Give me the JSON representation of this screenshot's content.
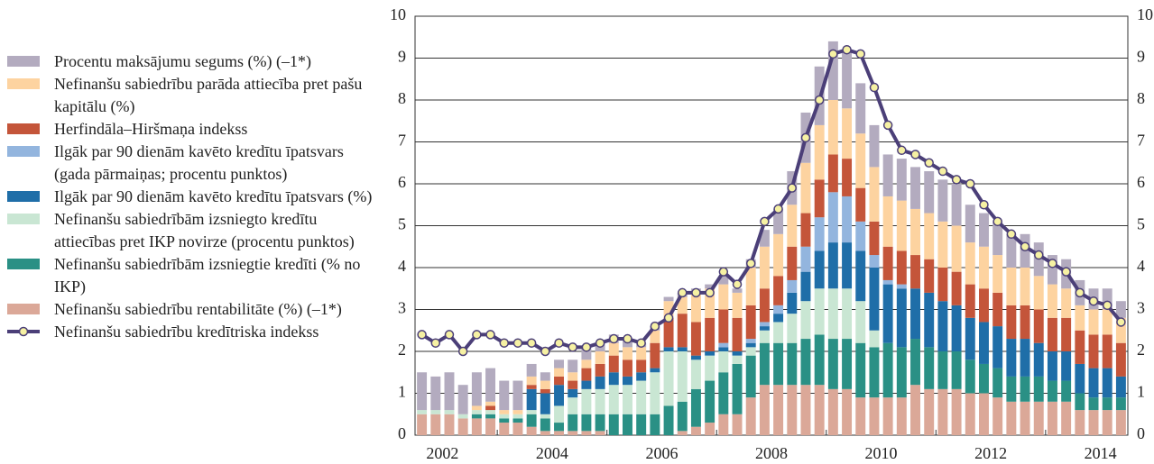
{
  "chart_data": {
    "type": "bar",
    "categories": [
      null,
      null,
      "2002",
      null,
      null,
      null,
      null,
      null,
      null,
      null,
      "2004",
      null,
      null,
      null,
      null,
      null,
      null,
      null,
      "2006",
      null,
      null,
      null,
      null,
      null,
      null,
      null,
      "2008",
      null,
      null,
      null,
      null,
      null,
      null,
      null,
      "2010",
      null,
      null,
      null,
      null,
      null,
      null,
      null,
      "2012",
      null,
      null,
      null,
      null,
      null,
      null,
      null,
      "2014",
      null
    ],
    "series": [
      {
        "name": "Procentu maksājumu segums (%) (–1*)",
        "color": "#b3abbf",
        "values": [
          0.9,
          0.8,
          0.9,
          0.7,
          0.8,
          0.8,
          0.7,
          0.7,
          0.3,
          0.2,
          0.2,
          0.3,
          0.3,
          0.2,
          0.2,
          0.2,
          0.1,
          0.1,
          0.1,
          0.1,
          0.1,
          0.1,
          0.2,
          0.1,
          0.2,
          0.4,
          0.6,
          0.8,
          1.2,
          1.4,
          1.4,
          1.4,
          1.2,
          1.0,
          1.0,
          1.0,
          1.0,
          1.0,
          1.0,
          1.0,
          0.9,
          0.8,
          0.8,
          0.8,
          0.8,
          0.8,
          0.7,
          0.7,
          0.6,
          0.5,
          0.5,
          0.4
        ]
      },
      {
        "name": "Nefinanšu sabiedrību parāda attiecība pret pašu kapitālu (%)",
        "color": "#fdd3a0",
        "values": [
          0,
          0,
          0,
          0,
          0.1,
          0.1,
          0.1,
          0.1,
          0.2,
          0.2,
          0.2,
          0.2,
          0.2,
          0.3,
          0.3,
          0.3,
          0.3,
          0.3,
          0.4,
          0.4,
          0.7,
          0.7,
          0.6,
          0.6,
          0.9,
          1.0,
          1.0,
          1.0,
          1.2,
          1.3,
          1.3,
          1.2,
          1.3,
          1.3,
          1.2,
          1.2,
          1.1,
          1.1,
          1.1,
          1.1,
          1.0,
          1.0,
          0.9,
          0.9,
          0.9,
          0.8,
          0.8,
          0.7,
          0.6,
          0.6,
          0.6,
          0.6
        ]
      },
      {
        "name": "Herfindāla–Hiršmaņa indekss",
        "color": "#c4553a",
        "values": [
          0,
          0,
          0,
          0,
          0,
          0.1,
          0,
          0,
          0.1,
          0.1,
          0.2,
          0.2,
          0.3,
          0.3,
          0.4,
          0.4,
          0.3,
          0.6,
          0.7,
          0.8,
          0.8,
          0.8,
          0.8,
          0.8,
          0.8,
          0.8,
          0.7,
          0.8,
          0.8,
          0.9,
          0.9,
          0.9,
          0.8,
          0.8,
          0.8,
          0.8,
          0.8,
          0.8,
          0.8,
          0.8,
          0.8,
          0.8,
          0.8,
          0.8,
          0.8,
          0.8,
          0.8,
          0.8,
          0.8,
          0.8,
          0.8,
          0.8
        ]
      },
      {
        "name": "Ilgāk par 90 dienām kavēto kredītu īpatsvars (gada pārmaiņas; procentu punktos)",
        "color": "#93b5de",
        "values": [
          0,
          0,
          0,
          0,
          0,
          0,
          0,
          0,
          0,
          0,
          0,
          0,
          0,
          0,
          0,
          0,
          0,
          0,
          0,
          0,
          0,
          0,
          0.1,
          0,
          0.1,
          0.1,
          0.2,
          0.3,
          0.6,
          0.8,
          1.2,
          1.1,
          0.7,
          0.3,
          0.1,
          0.1,
          0,
          0,
          0,
          0,
          0,
          0,
          0,
          0,
          0,
          0,
          0,
          0,
          0,
          0,
          0,
          0
        ]
      },
      {
        "name": "Ilgāk par 90 dienām kavēto kredītu īpatsvars (%)",
        "color": "#1f6ea8",
        "values": [
          0,
          0,
          0,
          0,
          0,
          0,
          0,
          0,
          0.5,
          0.5,
          0.5,
          0.2,
          0.2,
          0.3,
          0.3,
          0.2,
          0.2,
          0.1,
          0.1,
          0.1,
          0.1,
          0.1,
          0.1,
          0.1,
          0.1,
          0.1,
          0.2,
          0.5,
          0.7,
          0.9,
          1.1,
          1.1,
          1.2,
          1.5,
          1.4,
          1.4,
          1.2,
          1.3,
          1.2,
          1.1,
          1.0,
          1.0,
          1.0,
          0.9,
          0.9,
          0.8,
          0.7,
          0.7,
          0.7,
          0.7,
          0.7,
          0.5
        ]
      },
      {
        "name": "Nefinanšu sabiedrībām izsniegto kredītu attiecības pret IKP novirze (procentu punktos)",
        "color": "#c9e6d3",
        "values": [
          0.1,
          0.1,
          0.1,
          0.1,
          0.1,
          0.1,
          0.1,
          0.1,
          0.1,
          0.1,
          0.4,
          0.4,
          0.6,
          0.6,
          0.7,
          0.7,
          0.8,
          1.0,
          1.3,
          1.2,
          0.7,
          0.6,
          0.5,
          0.2,
          0.2,
          0.3,
          0.5,
          0.7,
          0.9,
          1.1,
          1.2,
          1.2,
          1.0,
          0.4,
          0,
          0,
          0,
          0,
          0,
          0,
          0,
          0,
          0,
          0,
          0,
          0,
          0,
          0,
          0,
          0,
          0,
          0
        ]
      },
      {
        "name": "Nefinanšu sabiedrībām izsniegtie kredīti (% no IKP)",
        "color": "#2a9085",
        "values": [
          0,
          0,
          0,
          0,
          0.1,
          0.1,
          0.1,
          0.1,
          0.3,
          0.3,
          0.2,
          0.4,
          0.4,
          0.4,
          0.5,
          0.5,
          0.5,
          0.5,
          0.7,
          0.7,
          0.9,
          1.0,
          1.0,
          1.2,
          1.0,
          1.0,
          1.0,
          1.0,
          1.1,
          1.2,
          1.2,
          1.2,
          1.3,
          1.2,
          1.3,
          1.2,
          1.1,
          1.0,
          0.9,
          0.9,
          0.8,
          0.7,
          0.7,
          0.6,
          0.6,
          0.6,
          0.5,
          0.5,
          0.4,
          0.3,
          0.3,
          0.3
        ]
      },
      {
        "name": "Nefinanšu sabiedrību rentabilitāte (%) (–1*)",
        "color": "#dba898",
        "values": [
          0.5,
          0.5,
          0.5,
          0.4,
          0.4,
          0.4,
          0.3,
          0.3,
          0.2,
          0.1,
          0.1,
          0.1,
          0.1,
          0.1,
          0,
          0,
          0,
          0,
          0,
          0.1,
          0.2,
          0.3,
          0.5,
          0.5,
          0.9,
          1.2,
          1.2,
          1.2,
          1.2,
          1.2,
          1.1,
          1.1,
          0.9,
          0.9,
          0.9,
          0.9,
          1.2,
          1.1,
          1.1,
          1.1,
          1.0,
          1.0,
          0.9,
          0.8,
          0.8,
          0.8,
          0.8,
          0.8,
          0.6,
          0.6,
          0.6,
          0.6
        ]
      }
    ],
    "line": {
      "name": "Nefinanšu sabiedrību kredītriska indekss",
      "color": "#4b3f78",
      "marker_color": "#f6f1a3",
      "values": [
        2.4,
        2.2,
        2.4,
        2.0,
        2.4,
        2.4,
        2.2,
        2.2,
        2.2,
        2.0,
        2.2,
        2.1,
        2.1,
        2.2,
        2.3,
        2.3,
        2.2,
        2.6,
        2.8,
        3.4,
        3.4,
        3.4,
        3.9,
        3.6,
        4.1,
        5.1,
        5.4,
        5.9,
        7.1,
        8.0,
        9.1,
        9.2,
        9.1,
        8.3,
        7.4,
        6.8,
        6.7,
        6.5,
        6.3,
        6.1,
        6.0,
        5.5,
        5.1,
        4.8,
        4.5,
        4.3,
        4.1,
        3.9,
        3.4,
        3.2,
        3.1,
        2.7
      ]
    },
    "ylim": [
      0,
      10
    ],
    "yticks": [
      0,
      1,
      2,
      3,
      4,
      5,
      6,
      7,
      8,
      9,
      10
    ],
    "y2lim": [
      0,
      10
    ],
    "y2ticks": [
      0,
      1,
      2,
      3,
      4,
      5,
      6,
      7,
      8,
      9,
      10
    ],
    "grid": true
  }
}
